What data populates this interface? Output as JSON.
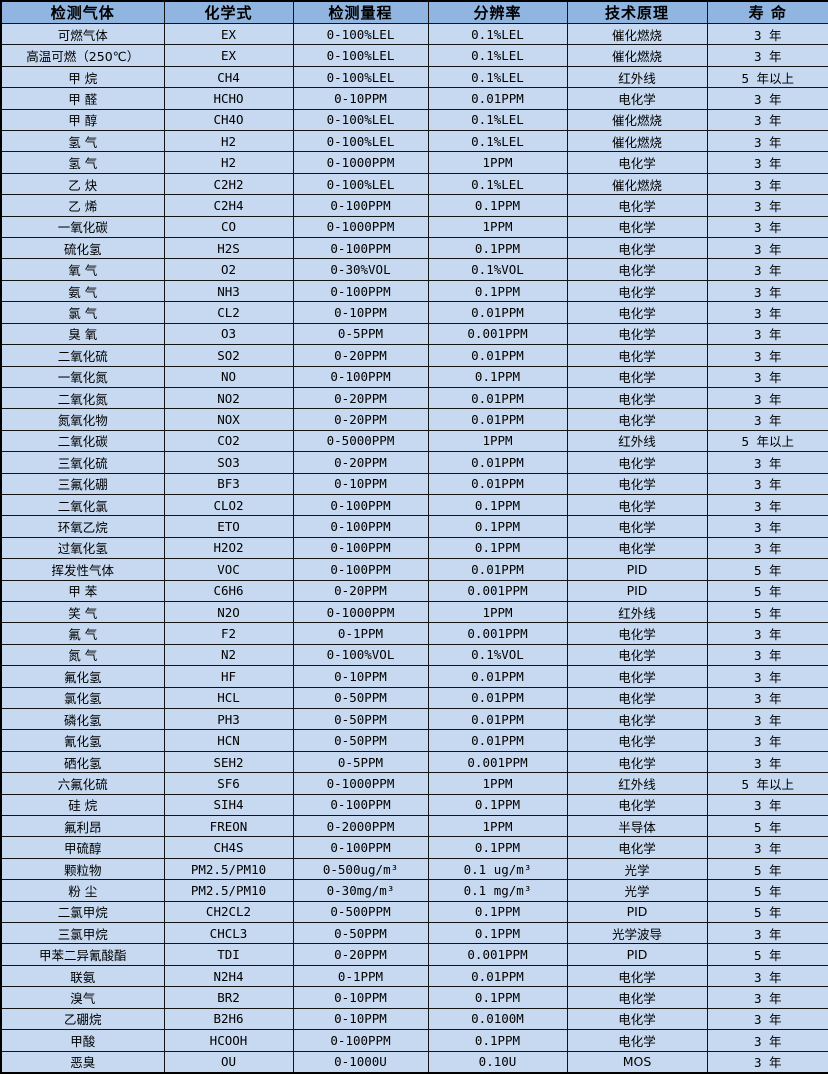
{
  "colors": {
    "header_bg": "#90B5E0",
    "row_bg": "#C6D9F0",
    "border": "#141414",
    "text": "#000000"
  },
  "table": {
    "columns": [
      {
        "label": "检测气体"
      },
      {
        "label": "化学式"
      },
      {
        "label": "检测量程"
      },
      {
        "label": "分辨率"
      },
      {
        "label": "技术原理"
      },
      {
        "label": "寿 命"
      }
    ],
    "rows": [
      {
        "gas": "可燃气体",
        "formula": "EX",
        "range": "0-100%LEL",
        "resolution": "0.1%LEL",
        "principle": "催化燃烧",
        "lifespan": "3 年"
      },
      {
        "gas": "高温可燃（250℃）",
        "formula": "EX",
        "range": "0-100%LEL",
        "resolution": "0.1%LEL",
        "principle": "催化燃烧",
        "lifespan": "3 年"
      },
      {
        "gas": "甲 烷",
        "formula": "CH4",
        "range": "0-100%LEL",
        "resolution": "0.1%LEL",
        "principle": "红外线",
        "lifespan": "5 年以上"
      },
      {
        "gas": "甲 醛",
        "formula": "HCHO",
        "range": "0-10PPM",
        "resolution": "0.01PPM",
        "principle": "电化学",
        "lifespan": "3 年"
      },
      {
        "gas": "甲 醇",
        "formula": "CH4O",
        "range": "0-100%LEL",
        "resolution": "0.1%LEL",
        "principle": "催化燃烧",
        "lifespan": "3 年"
      },
      {
        "gas": "氢 气",
        "formula": "H2",
        "range": "0-100%LEL",
        "resolution": "0.1%LEL",
        "principle": "催化燃烧",
        "lifespan": "3 年"
      },
      {
        "gas": "氢 气",
        "formula": "H2",
        "range": "0-1000PPM",
        "resolution": "1PPM",
        "principle": "电化学",
        "lifespan": "3 年"
      },
      {
        "gas": "乙 炔",
        "formula": "C2H2",
        "range": "0-100%LEL",
        "resolution": "0.1%LEL",
        "principle": "催化燃烧",
        "lifespan": "3 年"
      },
      {
        "gas": "乙 烯",
        "formula": "C2H4",
        "range": "0-100PPM",
        "resolution": "0.1PPM",
        "principle": "电化学",
        "lifespan": "3 年"
      },
      {
        "gas": "一氧化碳",
        "formula": "CO",
        "range": "0-1000PPM",
        "resolution": "1PPM",
        "principle": "电化学",
        "lifespan": "3 年"
      },
      {
        "gas": "硫化氢",
        "formula": "H2S",
        "range": "0-100PPM",
        "resolution": "0.1PPM",
        "principle": "电化学",
        "lifespan": "3 年"
      },
      {
        "gas": "氧 气",
        "formula": "O2",
        "range": "0-30%VOL",
        "resolution": "0.1%VOL",
        "principle": "电化学",
        "lifespan": "3 年"
      },
      {
        "gas": "氨 气",
        "formula": "NH3",
        "range": "0-100PPM",
        "resolution": "0.1PPM",
        "principle": "电化学",
        "lifespan": "3 年"
      },
      {
        "gas": "氯 气",
        "formula": "CL2",
        "range": "0-10PPM",
        "resolution": "0.01PPM",
        "principle": "电化学",
        "lifespan": "3 年"
      },
      {
        "gas": "臭 氧",
        "formula": "O3",
        "range": "0-5PPM",
        "resolution": "0.001PPM",
        "principle": "电化学",
        "lifespan": "3 年"
      },
      {
        "gas": "二氧化硫",
        "formula": "SO2",
        "range": "0-20PPM",
        "resolution": "0.01PPM",
        "principle": "电化学",
        "lifespan": "3 年"
      },
      {
        "gas": "一氧化氮",
        "formula": "NO",
        "range": "0-100PPM",
        "resolution": "0.1PPM",
        "principle": "电化学",
        "lifespan": "3 年"
      },
      {
        "gas": "二氧化氮",
        "formula": "NO2",
        "range": "0-20PPM",
        "resolution": "0.01PPM",
        "principle": "电化学",
        "lifespan": "3 年"
      },
      {
        "gas": "氮氧化物",
        "formula": "NOX",
        "range": "0-20PPM",
        "resolution": "0.01PPM",
        "principle": "电化学",
        "lifespan": "3 年"
      },
      {
        "gas": "二氧化碳",
        "formula": "CO2",
        "range": "0-5000PPM",
        "resolution": "1PPM",
        "principle": "红外线",
        "lifespan": "5 年以上"
      },
      {
        "gas": "三氧化硫",
        "formula": "SO3",
        "range": "0-20PPM",
        "resolution": "0.01PPM",
        "principle": "电化学",
        "lifespan": "3 年"
      },
      {
        "gas": "三氟化硼",
        "formula": "BF3",
        "range": "0-10PPM",
        "resolution": "0.01PPM",
        "principle": "电化学",
        "lifespan": "3 年"
      },
      {
        "gas": "二氧化氯",
        "formula": "CLO2",
        "range": "0-100PPM",
        "resolution": "0.1PPM",
        "principle": "电化学",
        "lifespan": "3 年"
      },
      {
        "gas": "环氧乙烷",
        "formula": "ETO",
        "range": "0-100PPM",
        "resolution": "0.1PPM",
        "principle": "电化学",
        "lifespan": "3 年"
      },
      {
        "gas": "过氧化氢",
        "formula": "H2O2",
        "range": "0-100PPM",
        "resolution": "0.1PPM",
        "principle": "电化学",
        "lifespan": "3 年"
      },
      {
        "gas": "挥发性气体",
        "formula": "VOC",
        "range": "0-100PPM",
        "resolution": "0.01PPM",
        "principle": "PID",
        "lifespan": "5 年"
      },
      {
        "gas": "甲 苯",
        "formula": "C6H6",
        "range": "0-20PPM",
        "resolution": "0.001PPM",
        "principle": "PID",
        "lifespan": "5 年"
      },
      {
        "gas": "笑 气",
        "formula": "N2O",
        "range": "0-1000PPM",
        "resolution": "1PPM",
        "principle": "红外线",
        "lifespan": "5 年"
      },
      {
        "gas": "氟 气",
        "formula": "F2",
        "range": "0-1PPM",
        "resolution": "0.001PPM",
        "principle": "电化学",
        "lifespan": "3 年"
      },
      {
        "gas": "氮 气",
        "formula": "N2",
        "range": "0-100%VOL",
        "resolution": "0.1%VOL",
        "principle": "电化学",
        "lifespan": "3 年"
      },
      {
        "gas": "氟化氢",
        "formula": "HF",
        "range": "0-10PPM",
        "resolution": "0.01PPM",
        "principle": "电化学",
        "lifespan": "3 年"
      },
      {
        "gas": "氯化氢",
        "formula": "HCL",
        "range": "0-50PPM",
        "resolution": "0.01PPM",
        "principle": "电化学",
        "lifespan": "3 年"
      },
      {
        "gas": "磷化氢",
        "formula": "PH3",
        "range": "0-50PPM",
        "resolution": "0.01PPM",
        "principle": "电化学",
        "lifespan": "3 年"
      },
      {
        "gas": "氰化氢",
        "formula": "HCN",
        "range": "0-50PPM",
        "resolution": "0.01PPM",
        "principle": "电化学",
        "lifespan": "3 年"
      },
      {
        "gas": "硒化氢",
        "formula": "SEH2",
        "range": "0-5PPM",
        "resolution": "0.001PPM",
        "principle": "电化学",
        "lifespan": "3 年"
      },
      {
        "gas": "六氟化硫",
        "formula": "SF6",
        "range": "0-1000PPM",
        "resolution": "1PPM",
        "principle": "红外线",
        "lifespan": "5 年以上"
      },
      {
        "gas": "硅 烷",
        "formula": "SIH4",
        "range": "0-100PPM",
        "resolution": "0.1PPM",
        "principle": "电化学",
        "lifespan": "3 年"
      },
      {
        "gas": "氟利昂",
        "formula": "FREON",
        "range": "0-2000PPM",
        "resolution": "1PPM",
        "principle": "半导体",
        "lifespan": "5 年"
      },
      {
        "gas": "甲硫醇",
        "formula": "CH4S",
        "range": "0-100PPM",
        "resolution": "0.1PPM",
        "principle": "电化学",
        "lifespan": "3 年"
      },
      {
        "gas": "颗粒物",
        "formula": "PM2.5/PM10",
        "range": "0-500ug/m³",
        "resolution": "0.1 ug/m³",
        "principle": "光学",
        "lifespan": "5 年"
      },
      {
        "gas": "粉 尘",
        "formula": "PM2.5/PM10",
        "range": "0-30mg/m³",
        "resolution": "0.1 mg/m³",
        "principle": "光学",
        "lifespan": "5 年"
      },
      {
        "gas": "二氯甲烷",
        "formula": "CH2CL2",
        "range": "0-500PPM",
        "resolution": "0.1PPM",
        "principle": "PID",
        "lifespan": "5 年"
      },
      {
        "gas": "三氯甲烷",
        "formula": "CHCL3",
        "range": "0-50PPM",
        "resolution": "0.1PPM",
        "principle": "光学波导",
        "lifespan": "3 年"
      },
      {
        "gas": "甲苯二异氰酸酯",
        "formula": "TDI",
        "range": "0-20PPM",
        "resolution": "0.001PPM",
        "principle": "PID",
        "lifespan": "5 年"
      },
      {
        "gas": "联氨",
        "formula": "N2H4",
        "range": "0-1PPM",
        "resolution": "0.01PPM",
        "principle": "电化学",
        "lifespan": "3 年"
      },
      {
        "gas": "溴气",
        "formula": "BR2",
        "range": "0-10PPM",
        "resolution": "0.1PPM",
        "principle": "电化学",
        "lifespan": "3 年"
      },
      {
        "gas": "乙硼烷",
        "formula": "B2H6",
        "range": "0-10PPM",
        "resolution": "0.0100M",
        "principle": "电化学",
        "lifespan": "3 年"
      },
      {
        "gas": "甲酸",
        "formula": "HCOOH",
        "range": "0-100PPM",
        "resolution": "0.1PPM",
        "principle": "电化学",
        "lifespan": "3 年"
      },
      {
        "gas": "恶臭",
        "formula": "OU",
        "range": "0-1000U",
        "resolution": "0.10U",
        "principle": "MOS",
        "lifespan": "3 年"
      }
    ]
  }
}
